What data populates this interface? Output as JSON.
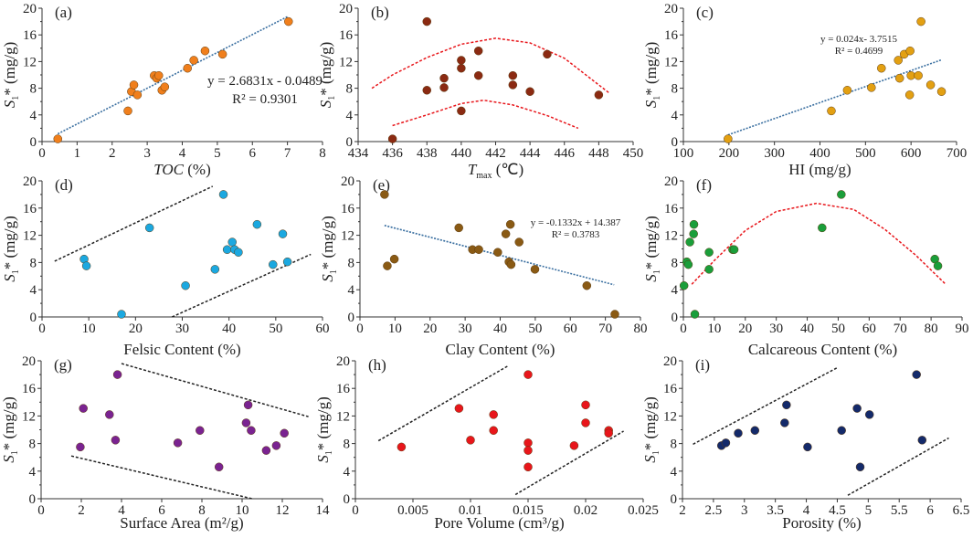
{
  "chart_data": [
    {
      "panel": "(a)",
      "type": "scatter",
      "color": "#f07f1c",
      "xlabel": {
        "main": "TOC",
        "sub": "",
        "rest": " (%)",
        "italic": true
      },
      "ylabel": {
        "main": "S",
        "sub": "1",
        "rest": "* (mg/g)"
      },
      "xlim": [
        0,
        8
      ],
      "ylim": [
        0,
        20
      ],
      "xticks": [
        "0",
        "1",
        "2",
        "3",
        "4",
        "5",
        "6",
        "7",
        "8"
      ],
      "yticks": [
        "0",
        "4",
        "8",
        "12",
        "16",
        "20"
      ],
      "points": [
        [
          0.45,
          0.4
        ],
        [
          2.45,
          4.6
        ],
        [
          2.55,
          7.5
        ],
        [
          2.62,
          8.5
        ],
        [
          2.72,
          7.0
        ],
        [
          3.2,
          9.9
        ],
        [
          3.27,
          9.5
        ],
        [
          3.33,
          9.9
        ],
        [
          3.42,
          7.7
        ],
        [
          3.5,
          8.2
        ],
        [
          4.15,
          11.0
        ],
        [
          4.33,
          12.2
        ],
        [
          4.65,
          13.6
        ],
        [
          5.15,
          13.1
        ],
        [
          7.03,
          18.0
        ]
      ],
      "lines": [
        {
          "style": "trend",
          "color": "#3a6fa0",
          "points": [
            [
              0.45,
              1.16
            ],
            [
              7.0,
              18.73
            ]
          ]
        }
      ],
      "equation": [
        "y = 2.6831x - 0.0489",
        "R² = 0.9301"
      ]
    },
    {
      "panel": "(b)",
      "type": "scatter",
      "color": "#8b2a12",
      "xlabel": {
        "main": "T",
        "sub": "max",
        "rest": " (℃)",
        "italic": true
      },
      "ylabel": {
        "main": "S",
        "sub": "1",
        "rest": "* (mg/g)"
      },
      "xlim": [
        434,
        450
      ],
      "ylim": [
        0,
        20
      ],
      "xticks": [
        "434",
        "436",
        "438",
        "440",
        "442",
        "444",
        "446",
        "448",
        "450"
      ],
      "yticks": [
        "0",
        "4",
        "8",
        "12",
        "16",
        "20"
      ],
      "points": [
        [
          436,
          0.4
        ],
        [
          438,
          18
        ],
        [
          438,
          7.7
        ],
        [
          439,
          9.5
        ],
        [
          439,
          8.1
        ],
        [
          440,
          12.2
        ],
        [
          440,
          11
        ],
        [
          440,
          4.6
        ],
        [
          441,
          13.6
        ],
        [
          441,
          9.9
        ],
        [
          443,
          9.9
        ],
        [
          443,
          8.5
        ],
        [
          444,
          7.5
        ],
        [
          445,
          13.1
        ],
        [
          448,
          7.0
        ]
      ],
      "lines": [
        {
          "style": "envelope",
          "color": "#e8161b",
          "points": [
            [
              434.8,
              8
            ],
            [
              436,
              10
            ],
            [
              438,
              12.6
            ],
            [
              440,
              14.6
            ],
            [
              442,
              15.5
            ],
            [
              444,
              14.8
            ],
            [
              446,
              12.5
            ],
            [
              448.6,
              7.3
            ]
          ]
        },
        {
          "style": "envelope",
          "color": "#e8161b",
          "points": [
            [
              436,
              2.4
            ],
            [
              438,
              4
            ],
            [
              440,
              5.7
            ],
            [
              441.3,
              6.2
            ],
            [
              443,
              5.5
            ],
            [
              445,
              3.9
            ],
            [
              446.8,
              2
            ]
          ]
        }
      ],
      "equation": []
    },
    {
      "panel": "(c)",
      "type": "scatter",
      "color": "#e3a012",
      "xlabel": {
        "main": "HI",
        "sub": "",
        "rest": " (mg/g)",
        "italic": false
      },
      "ylabel": {
        "main": "S",
        "sub": "1",
        "rest": "* (mg/g)"
      },
      "xlim": [
        100,
        700
      ],
      "ylim": [
        0,
        20
      ],
      "xticks": [
        "100",
        "200",
        "300",
        "400",
        "500",
        "600",
        "700"
      ],
      "yticks": [
        "0",
        "4",
        "8",
        "12",
        "16",
        "20"
      ],
      "points": [
        [
          198,
          0.4
        ],
        [
          425,
          4.6
        ],
        [
          460,
          7.7
        ],
        [
          513,
          8.1
        ],
        [
          535,
          11
        ],
        [
          572,
          12.2
        ],
        [
          575,
          9.5
        ],
        [
          585,
          13.1
        ],
        [
          597,
          7
        ],
        [
          598,
          13.6
        ],
        [
          600,
          9.9
        ],
        [
          616,
          9.9
        ],
        [
          622,
          18
        ],
        [
          643,
          8.5
        ],
        [
          667,
          7.5
        ]
      ],
      "lines": [
        {
          "style": "trend",
          "color": "#3a6fa0",
          "points": [
            [
              198,
              1.0
            ],
            [
              667,
              12.26
            ]
          ]
        }
      ],
      "equation": [
        "y = 0.024x- 3.7515",
        "R² = 0.4699"
      ]
    },
    {
      "panel": "(d)",
      "type": "scatter",
      "color": "#1ba8e0",
      "xlabel": {
        "main": "Felsic Content",
        "sub": "",
        "rest": " (%)",
        "italic": false
      },
      "ylabel": {
        "main": "S",
        "sub": "1",
        "rest": "* (mg/g)"
      },
      "xlim": [
        0,
        60
      ],
      "ylim": [
        0,
        20
      ],
      "xticks": [
        "0",
        "10",
        "20",
        "30",
        "40",
        "50",
        "60"
      ],
      "yticks": [
        "0",
        "4",
        "8",
        "12",
        "16",
        "20"
      ],
      "points": [
        [
          9,
          8.5
        ],
        [
          9.5,
          7.5
        ],
        [
          17,
          0.4
        ],
        [
          23,
          13.1
        ],
        [
          30.7,
          4.6
        ],
        [
          37,
          7
        ],
        [
          38.8,
          18
        ],
        [
          39.6,
          9.9
        ],
        [
          40.7,
          11
        ],
        [
          41.2,
          9.9
        ],
        [
          42,
          9.5
        ],
        [
          46,
          13.6
        ],
        [
          49.4,
          7.7
        ],
        [
          51.5,
          12.2
        ],
        [
          52.5,
          8.1
        ]
      ],
      "lines": [
        {
          "style": "bound",
          "color": "#222222",
          "points": [
            [
              2.7,
              8.2
            ],
            [
              36.5,
              19.2
            ]
          ]
        },
        {
          "style": "bound",
          "color": "#222222",
          "points": [
            [
              27.8,
              0
            ],
            [
              57.5,
              9.2
            ]
          ]
        }
      ],
      "equation": []
    },
    {
      "panel": "(e)",
      "type": "scatter",
      "color": "#8a5a14",
      "xlabel": {
        "main": "Clay Content",
        "sub": "",
        "rest": " (%)",
        "italic": false
      },
      "ylabel": {
        "main": "S",
        "sub": "1",
        "rest": "* (mg/g)"
      },
      "xlim": [
        0,
        80
      ],
      "ylim": [
        0,
        20
      ],
      "xticks": [
        "0",
        "10",
        "20",
        "30",
        "40",
        "50",
        "60",
        "70",
        "80"
      ],
      "yticks": [
        "0",
        "4",
        "8",
        "12",
        "16",
        "20"
      ],
      "points": [
        [
          7,
          18
        ],
        [
          7.8,
          7.5
        ],
        [
          9.8,
          8.5
        ],
        [
          28.2,
          13.1
        ],
        [
          32.1,
          9.9
        ],
        [
          33.9,
          9.9
        ],
        [
          39.3,
          9.5
        ],
        [
          41.6,
          12.2
        ],
        [
          42.5,
          8.1
        ],
        [
          42.9,
          13.6
        ],
        [
          43.1,
          7.7
        ],
        [
          45.4,
          11
        ],
        [
          49.9,
          7
        ],
        [
          64.7,
          4.6
        ],
        [
          72.7,
          0.4
        ]
      ],
      "lines": [
        {
          "style": "trend",
          "color": "#3a6fa0",
          "points": [
            [
              7,
              13.45
            ],
            [
              72.5,
              4.73
            ]
          ]
        }
      ],
      "equation": [
        "y = -0.1332x + 14.387",
        "R² = 0.3783"
      ]
    },
    {
      "panel": "(f)",
      "type": "scatter",
      "color": "#1a9e3a",
      "xlabel": {
        "main": "Calcareous Content",
        "sub": "",
        "rest": " (%)",
        "italic": false
      },
      "ylabel": {
        "main": "S",
        "sub": "1",
        "rest": "* (mg/g)"
      },
      "xlim": [
        0,
        90
      ],
      "ylim": [
        0,
        20
      ],
      "xticks": [
        "0",
        "10",
        "20",
        "30",
        "40",
        "50",
        "60",
        "70",
        "80",
        "90"
      ],
      "yticks": [
        "0",
        "4",
        "8",
        "12",
        "16",
        "20"
      ],
      "points": [
        [
          0.2,
          4.6
        ],
        [
          1.1,
          8.1
        ],
        [
          1.6,
          7.7
        ],
        [
          2.1,
          11
        ],
        [
          3.3,
          12.2
        ],
        [
          3.4,
          13.6
        ],
        [
          3.7,
          0.4
        ],
        [
          8.3,
          9.5
        ],
        [
          8.3,
          7
        ],
        [
          15.9,
          9.9
        ],
        [
          16.4,
          9.9
        ],
        [
          44.8,
          13.1
        ],
        [
          51,
          18
        ],
        [
          81.2,
          8.5
        ],
        [
          82.2,
          7.5
        ]
      ],
      "lines": [
        {
          "style": "envelope",
          "color": "#e8161b",
          "points": [
            [
              2.7,
              4.8
            ],
            [
              10,
              8.3
            ],
            [
              20,
              12.7
            ],
            [
              30,
              15.5
            ],
            [
              43,
              16.7
            ],
            [
              55,
              15.8
            ],
            [
              65,
              12.9
            ],
            [
              75,
              9.1
            ],
            [
              84.5,
              4.9
            ]
          ]
        }
      ],
      "equation": []
    },
    {
      "panel": "(g)",
      "type": "scatter",
      "color": "#7a2391",
      "xlabel": {
        "main": "Surface Area",
        "sub": "",
        "rest": " (m²/g)",
        "italic": false
      },
      "ylabel": {
        "main": "S",
        "sub": "1",
        "rest": "* (mg/g)"
      },
      "xlim": [
        0,
        14
      ],
      "ylim": [
        0,
        20
      ],
      "xticks": [
        "0",
        "2",
        "4",
        "6",
        "8",
        "10",
        "12",
        "14"
      ],
      "yticks": [
        "0",
        "4",
        "8",
        "12",
        "16",
        "20"
      ],
      "points": [
        [
          1.95,
          7.5
        ],
        [
          2.1,
          13.1
        ],
        [
          3.4,
          12.2
        ],
        [
          3.7,
          8.5
        ],
        [
          3.8,
          18
        ],
        [
          6.8,
          8.1
        ],
        [
          7.9,
          9.9
        ],
        [
          8.85,
          4.6
        ],
        [
          10.2,
          11
        ],
        [
          10.3,
          13.6
        ],
        [
          10.45,
          9.9
        ],
        [
          11.2,
          7
        ],
        [
          11.7,
          7.7
        ],
        [
          12.1,
          9.5
        ]
      ],
      "lines": [
        {
          "style": "bound",
          "color": "#222222",
          "points": [
            [
              4,
              19.6
            ],
            [
              13.3,
              11.9
            ]
          ]
        },
        {
          "style": "bound",
          "color": "#222222",
          "points": [
            [
              1.5,
              6.2
            ],
            [
              10.5,
              0
            ]
          ]
        }
      ],
      "equation": []
    },
    {
      "panel": "(h)",
      "type": "scatter",
      "color": "#e8161b",
      "xlabel": {
        "main": "Pore Volume",
        "sub": "",
        "rest": " (cm³/g)",
        "italic": false
      },
      "ylabel": {
        "main": "S",
        "sub": "1",
        "rest": "* (mg/g)"
      },
      "xlim": [
        0,
        0.025
      ],
      "ylim": [
        0,
        20
      ],
      "xticks": [
        "0",
        "0.005",
        "0.01",
        "0.015",
        "0.02",
        "0.025"
      ],
      "yticks": [
        "0",
        "4",
        "8",
        "12",
        "16",
        "20"
      ],
      "points": [
        [
          0.004,
          7.5
        ],
        [
          0.009,
          13.1
        ],
        [
          0.01,
          8.5
        ],
        [
          0.012,
          12.2
        ],
        [
          0.012,
          9.9
        ],
        [
          0.015,
          18
        ],
        [
          0.015,
          8.1
        ],
        [
          0.015,
          7
        ],
        [
          0.015,
          4.6
        ],
        [
          0.019,
          7.7
        ],
        [
          0.02,
          13.6
        ],
        [
          0.02,
          11
        ],
        [
          0.022,
          9.9
        ],
        [
          0.022,
          9.5
        ]
      ],
      "lines": [
        {
          "style": "bound",
          "color": "#222222",
          "points": [
            [
              0.002,
              8.4
            ],
            [
              0.0133,
              19.3
            ]
          ]
        },
        {
          "style": "bound",
          "color": "#222222",
          "points": [
            [
              0.0139,
              0.6
            ],
            [
              0.0233,
              9.8
            ]
          ]
        }
      ],
      "equation": []
    },
    {
      "panel": "(i)",
      "type": "scatter",
      "color": "#142a6a",
      "xlabel": {
        "main": "Porosity",
        "sub": "",
        "rest": " (%)",
        "italic": false
      },
      "ylabel": {
        "main": "S",
        "sub": "1",
        "rest": "* (mg/g)"
      },
      "xlim": [
        2,
        6.5
      ],
      "ylim": [
        0,
        20
      ],
      "xticks": [
        "2",
        "2.5",
        "3",
        "3.5",
        "4",
        "4.5",
        "5",
        "5.5",
        "6",
        "6.5"
      ],
      "yticks": [
        "0",
        "4",
        "8",
        "12",
        "16",
        "20"
      ],
      "points": [
        [
          2.63,
          7.7
        ],
        [
          2.7,
          8.1
        ],
        [
          2.9,
          9.5
        ],
        [
          3.17,
          9.9
        ],
        [
          3.65,
          11
        ],
        [
          3.68,
          13.6
        ],
        [
          4.02,
          7.5
        ],
        [
          4.57,
          9.9
        ],
        [
          4.82,
          13.1
        ],
        [
          4.87,
          4.6
        ],
        [
          5.02,
          12.2
        ],
        [
          5.78,
          18
        ],
        [
          5.87,
          8.5
        ]
      ],
      "lines": [
        {
          "style": "bound",
          "color": "#222222",
          "points": [
            [
              2.17,
              7.9
            ],
            [
              4.5,
              19
            ]
          ]
        },
        {
          "style": "bound",
          "color": "#222222",
          "points": [
            [
              4.67,
              0.5
            ],
            [
              6.3,
              8.8
            ]
          ]
        }
      ],
      "equation": []
    }
  ]
}
